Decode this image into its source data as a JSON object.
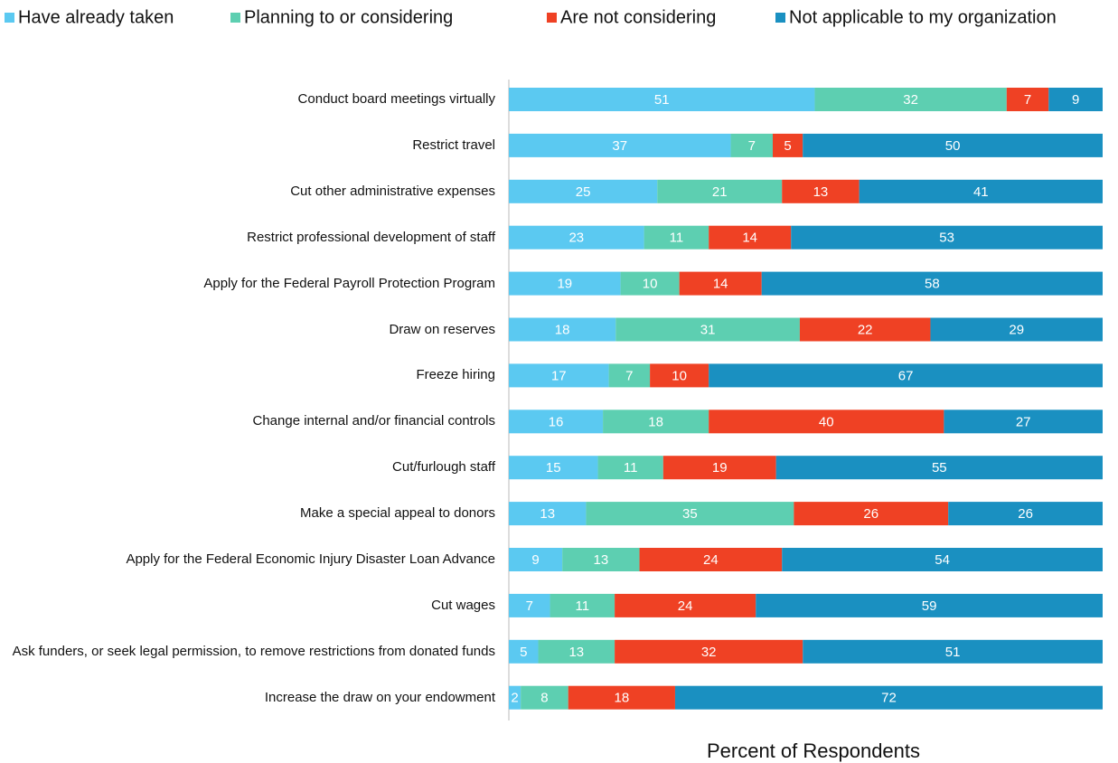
{
  "chart_data": {
    "type": "stacked-bar-percent",
    "orientation": "horizontal",
    "x_label": "Percent of Respondents",
    "categories": [
      "Conduct board meetings virtually",
      "Restrict travel",
      "Cut other administrative expenses",
      "Restrict professional development of staff",
      "Apply for the Federal Payroll Protection Program",
      "Draw on reserves",
      "Freeze hiring",
      "Change internal and/or financial controls",
      "Cut/furlough staff",
      "Make a special appeal to donors",
      "Apply for the Federal Economic Injury Disaster Loan Advance",
      "Cut wages",
      "Ask funders, or seek legal permission, to remove restrictions from donated funds",
      "Increase the draw on your endowment"
    ],
    "series": [
      {
        "name": "Have already taken",
        "color": "#5bc9f1",
        "values": [
          51,
          37,
          25,
          23,
          19,
          18,
          17,
          16,
          15,
          13,
          9,
          7,
          5,
          2
        ]
      },
      {
        "name": "Planning to or considering",
        "color": "#5dcfb1",
        "values": [
          32,
          7,
          21,
          11,
          10,
          31,
          7,
          18,
          11,
          35,
          13,
          11,
          13,
          8
        ]
      },
      {
        "name": "Are not considering",
        "color": "#ef4124",
        "values": [
          7,
          5,
          13,
          14,
          14,
          22,
          10,
          40,
          19,
          26,
          24,
          24,
          32,
          18
        ]
      },
      {
        "name": "Not applicable to my organization",
        "color": "#1a90c1",
        "values": [
          9,
          50,
          41,
          53,
          58,
          29,
          67,
          27,
          55,
          26,
          54,
          59,
          51,
          72
        ]
      }
    ],
    "legend": "top"
  }
}
